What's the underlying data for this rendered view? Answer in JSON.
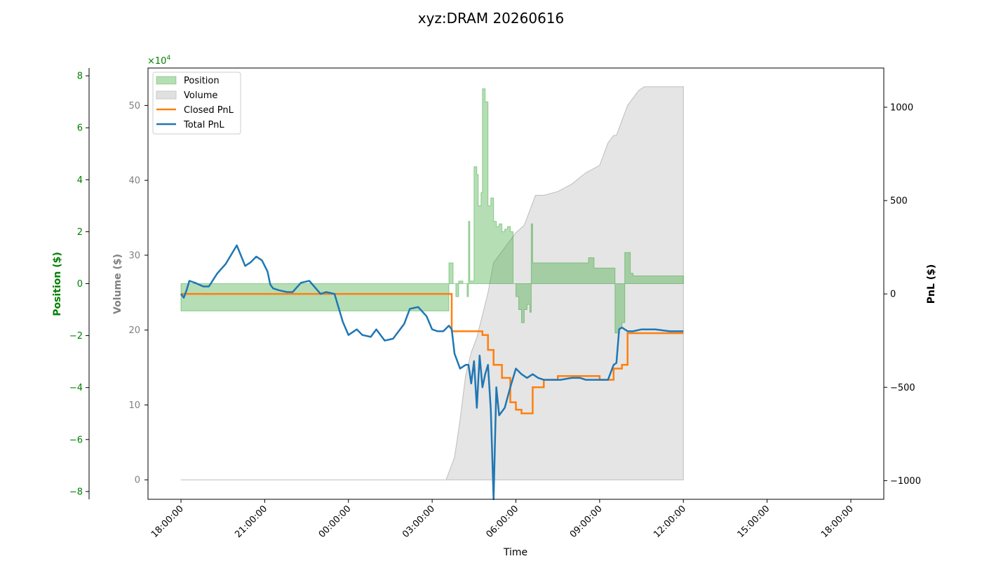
{
  "chart_data": {
    "type": "line",
    "title": "xyz:DRAM 20260616",
    "xlabel": "Time",
    "x_ticks": [
      "18:00:00",
      "21:00:00",
      "00:00:00",
      "03:00:00",
      "06:00:00",
      "09:00:00",
      "12:00:00",
      "15:00:00",
      "18:00:00"
    ],
    "x_range_hours": [
      0,
      24
    ],
    "axes": {
      "position": {
        "label": "Position ($)",
        "color": "#008000",
        "ylim": [
          -8.3,
          8.3
        ],
        "ticks": [
          "8",
          "6",
          "4",
          "2",
          "0",
          "−2",
          "−4",
          "−6",
          "−8"
        ],
        "tick_values": [
          8,
          6,
          4,
          2,
          0,
          -2,
          -4,
          -6,
          -8
        ],
        "multiplier": "×10",
        "multiplier_exp": "4"
      },
      "volume": {
        "label": "Volume ($)",
        "color": "#808080",
        "ylim": [
          -2.6,
          55
        ],
        "ticks": [
          "50",
          "40",
          "30",
          "20",
          "10",
          "0"
        ],
        "tick_values": [
          50,
          40,
          30,
          20,
          10,
          0
        ]
      },
      "pnl": {
        "label": "PnL ($)",
        "color": "#000000",
        "ylim": [
          -1100,
          1210
        ],
        "ticks": [
          "1000",
          "500",
          "0",
          "−500",
          "−1000"
        ],
        "tick_values": [
          1000,
          500,
          0,
          -500,
          -1000
        ]
      }
    },
    "legend": {
      "placement": "top-left",
      "entries": [
        "Position",
        "Volume",
        "Closed PnL",
        "Total PnL"
      ]
    },
    "series": [
      {
        "name": "Position",
        "axis": "position",
        "color": "#2ca02c",
        "style": "area",
        "x": [
          0,
          9.55,
          9.6,
          9.75,
          9.85,
          9.95,
          10.05,
          10.1,
          10.25,
          10.3,
          10.35,
          10.5,
          10.6,
          10.65,
          10.7,
          10.75,
          10.8,
          10.9,
          11.0,
          11.1,
          11.2,
          11.3,
          11.4,
          11.5,
          11.6,
          11.7,
          11.8,
          11.9,
          12.0,
          12.05,
          12.1,
          12.2,
          12.3,
          12.4,
          12.5,
          12.55,
          12.6,
          12.7,
          13.0,
          13.5,
          14.0,
          14.5,
          14.6,
          14.8,
          15.0,
          15.5,
          15.55,
          15.6,
          15.7,
          15.8,
          15.9,
          16.0,
          16.1,
          16.2,
          16.5,
          17.0,
          17.5,
          18.0
        ],
        "values": [
          -1.05,
          -1.05,
          0.8,
          0.0,
          -0.5,
          0.1,
          0.1,
          0.0,
          -0.5,
          2.4,
          0.1,
          4.5,
          4.2,
          3.0,
          3.0,
          3.5,
          7.5,
          7.0,
          3.0,
          3.3,
          2.4,
          2.2,
          2.3,
          2.0,
          2.1,
          2.2,
          2.0,
          0.0,
          -0.5,
          -0.5,
          -1.0,
          -1.5,
          -1.0,
          -0.8,
          -1.1,
          2.3,
          0.8,
          0.8,
          0.8,
          0.8,
          0.8,
          0.8,
          1.0,
          0.6,
          0.6,
          0.6,
          -1.9,
          -1.9,
          -1.7,
          -1.5,
          1.2,
          1.2,
          0.4,
          0.3,
          0.3,
          0.3,
          0.3,
          0.3
        ]
      },
      {
        "name": "Volume",
        "axis": "volume",
        "color": "#d3d3d3",
        "style": "area",
        "x": [
          0,
          9.5,
          9.6,
          9.8,
          10.0,
          10.2,
          10.4,
          10.6,
          10.8,
          11.0,
          11.2,
          11.4,
          11.6,
          11.8,
          12.0,
          12.3,
          12.5,
          12.6,
          12.7,
          13.0,
          13.5,
          14.0,
          14.5,
          15.0,
          15.3,
          15.5,
          15.6,
          15.8,
          16.0,
          16.2,
          16.4,
          16.6,
          17.0,
          17.5,
          18.0
        ],
        "values": [
          0,
          0,
          1,
          3,
          8,
          14,
          17,
          19,
          22,
          25,
          29,
          30,
          31,
          32,
          33,
          34,
          36,
          37,
          38,
          38,
          38.5,
          39.5,
          41,
          42,
          45,
          46,
          46,
          48,
          50,
          51,
          52,
          52.5,
          52.5,
          52.5,
          52.5
        ]
      },
      {
        "name": "Closed PnL",
        "axis": "pnl",
        "color": "#ff7f0e",
        "style": "step",
        "x": [
          0,
          9.6,
          9.7,
          10.0,
          10.8,
          11.0,
          11.2,
          11.5,
          11.8,
          12.0,
          12.2,
          12.5,
          12.6,
          13.0,
          13.5,
          14.0,
          14.5,
          15.0,
          15.5,
          15.8,
          16.0,
          17.0,
          18.0
        ],
        "values": [
          0,
          0,
          -200,
          -200,
          -220,
          -300,
          -380,
          -450,
          -580,
          -620,
          -640,
          -640,
          -500,
          -460,
          -440,
          -440,
          -440,
          -460,
          -400,
          -380,
          -210,
          -210,
          -210
        ]
      },
      {
        "name": "Total PnL",
        "axis": "pnl",
        "color": "#1f77b4",
        "style": "line",
        "x": [
          0,
          0.1,
          0.2,
          0.3,
          0.5,
          0.8,
          1.0,
          1.3,
          1.6,
          2.0,
          2.3,
          2.5,
          2.7,
          2.9,
          3.0,
          3.1,
          3.2,
          3.3,
          3.5,
          3.8,
          4.0,
          4.3,
          4.6,
          5.0,
          5.2,
          5.5,
          5.8,
          6.0,
          6.3,
          6.5,
          6.8,
          7.0,
          7.3,
          7.6,
          8.0,
          8.2,
          8.5,
          8.8,
          9.0,
          9.2,
          9.4,
          9.6,
          9.7,
          9.8,
          10.0,
          10.2,
          10.3,
          10.4,
          10.5,
          10.6,
          10.7,
          10.8,
          10.9,
          11.0,
          11.1,
          11.2,
          11.3,
          11.4,
          11.6,
          11.8,
          12.0,
          12.2,
          12.4,
          12.6,
          12.8,
          13.0,
          13.3,
          13.6,
          14.0,
          14.3,
          14.5,
          14.8,
          15.0,
          15.3,
          15.5,
          15.6,
          15.7,
          15.8,
          15.9,
          16.0,
          16.2,
          16.5,
          17.0,
          17.5,
          18.0
        ],
        "values": [
          0,
          -20,
          20,
          70,
          60,
          40,
          40,
          110,
          160,
          260,
          150,
          170,
          200,
          180,
          150,
          120,
          50,
          30,
          20,
          10,
          10,
          60,
          70,
          0,
          10,
          0,
          -150,
          -220,
          -190,
          -220,
          -230,
          -190,
          -250,
          -240,
          -160,
          -80,
          -70,
          -120,
          -190,
          -200,
          -200,
          -170,
          -190,
          -320,
          -400,
          -380,
          -380,
          -480,
          -360,
          -610,
          -330,
          -500,
          -430,
          -380,
          -620,
          -1100,
          -500,
          -650,
          -610,
          -500,
          -400,
          -430,
          -450,
          -430,
          -450,
          -460,
          -460,
          -460,
          -450,
          -450,
          -460,
          -460,
          -460,
          -460,
          -380,
          -370,
          -190,
          -180,
          -190,
          -200,
          -200,
          -190,
          -190,
          -200,
          -200
        ]
      }
    ],
    "grid": false
  }
}
